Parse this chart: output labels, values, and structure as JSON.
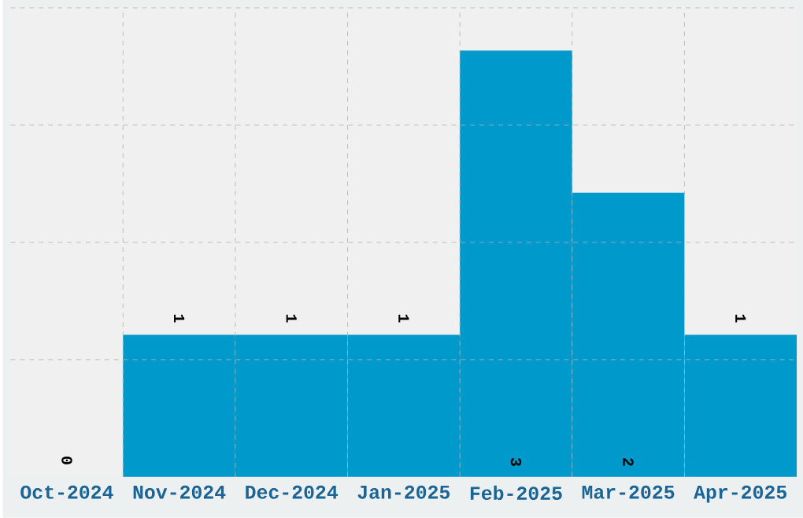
{
  "chart_data": {
    "type": "bar",
    "categories": [
      "Oct-2024",
      "Nov-2024",
      "Dec-2024",
      "Jan-2025",
      "Feb-2025",
      "Mar-2025",
      "Apr-2025"
    ],
    "values": [
      0,
      1,
      1,
      1,
      3,
      2,
      1
    ],
    "color": "#0099cc",
    "data_labels": true,
    "grid": true,
    "ylim": [
      0,
      3.3
    ],
    "yticks": [
      {
        "value": 0.825,
        "label": null
      },
      {
        "value": 1.65,
        "label": null
      },
      {
        "value": 2.475,
        "label": null
      },
      {
        "value": 3.3,
        "label": null
      }
    ],
    "tick_labels": "x"
  }
}
